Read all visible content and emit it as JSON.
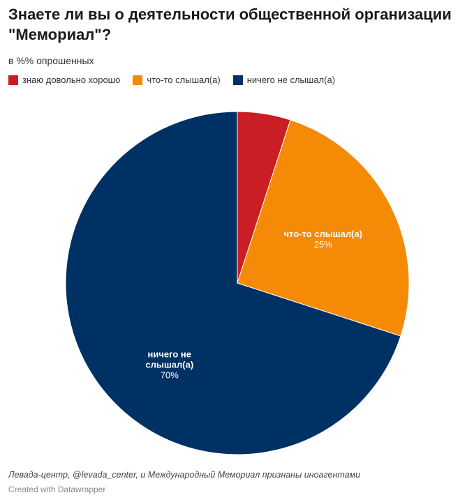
{
  "header": {
    "title": "Знаете ли вы о деятельности общественной организации \"Мемориал\"?",
    "subtitle": "в %% опрошенных"
  },
  "chart_data": {
    "type": "pie",
    "slices": [
      {
        "name": "знаю довольно хорошо",
        "value": 5,
        "color": "#c81e24"
      },
      {
        "name": "что-то слышал(а)",
        "value": 25,
        "color": "#f58a06"
      },
      {
        "name": "ничего не слышал(а)",
        "value": 70,
        "color": "#003164"
      }
    ],
    "slice_labels": [
      {
        "text": "что-то слышал(а)",
        "value_text": "25%"
      },
      {
        "text": "ничего не слышал(а)",
        "value_text": "70%"
      }
    ],
    "legend_position": "top-left"
  },
  "footer": {
    "note": "Левада-центр, @levada_center, и Международный Мемориал признаны иноагентами",
    "credit": "Created with Datawrapper"
  }
}
